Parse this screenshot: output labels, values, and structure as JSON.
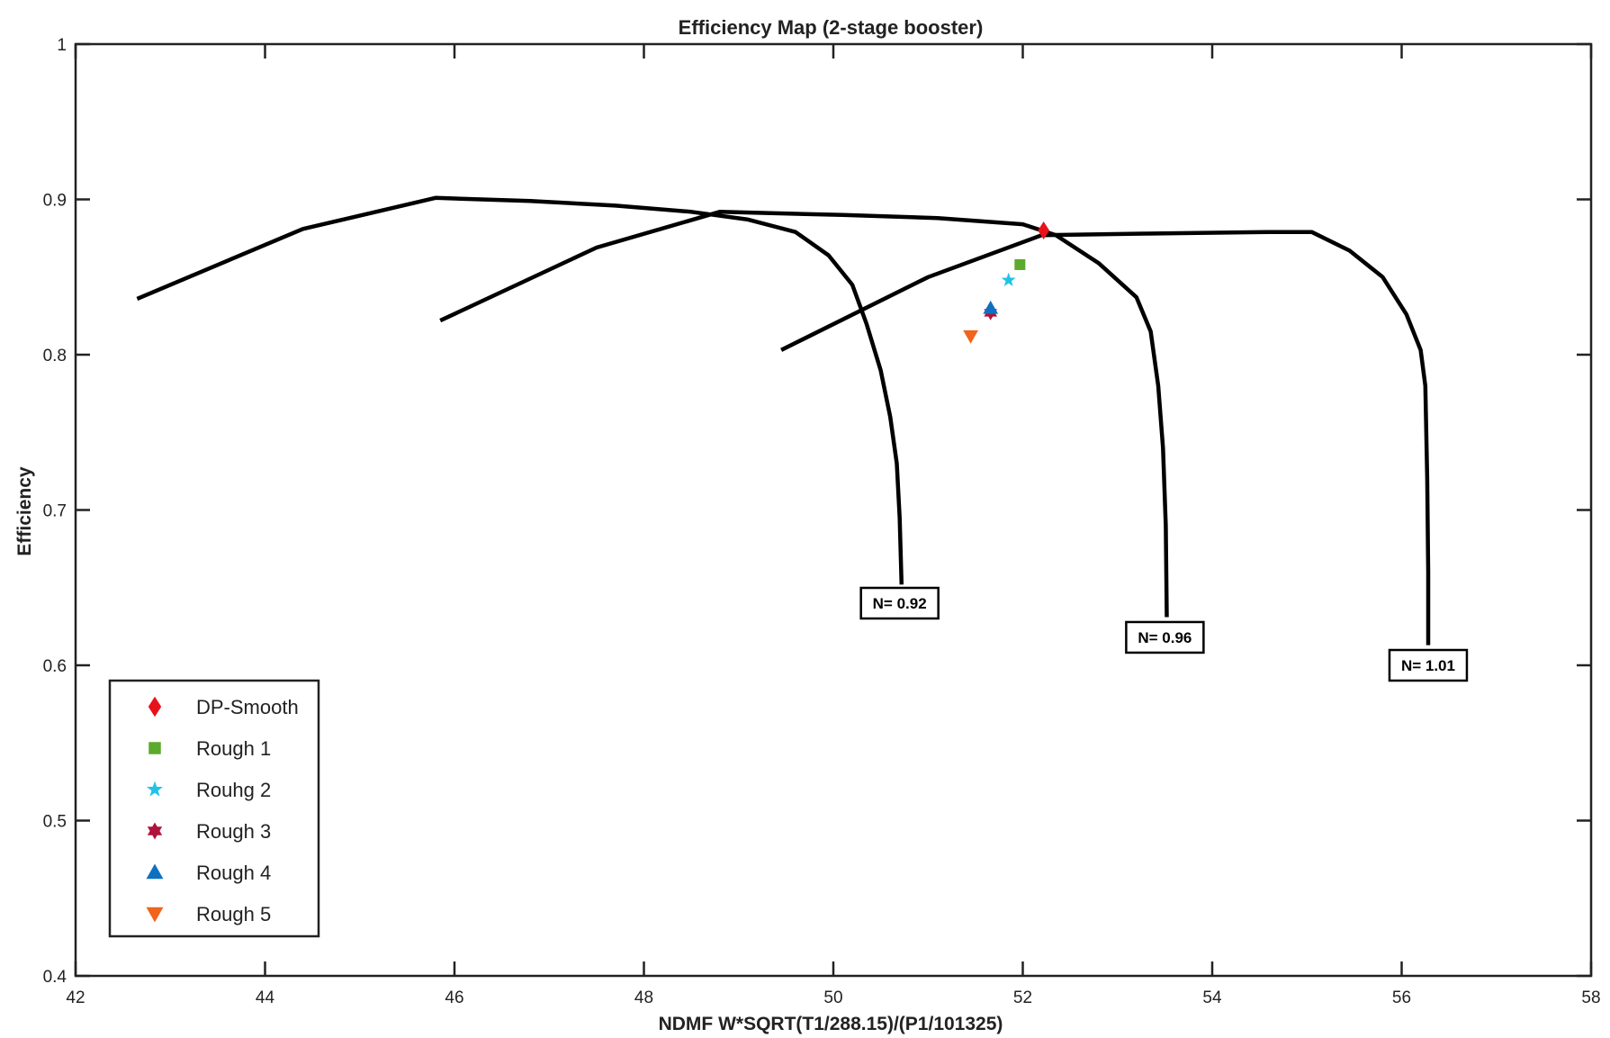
{
  "chart_data": {
    "type": "line",
    "title": "Efficiency Map (2-stage booster)",
    "xlabel": "NDMF W*SQRT(T1/288.15)/(P1/101325)",
    "ylabel": "Efficiency",
    "xlim": [
      42,
      58
    ],
    "ylim": [
      0.4,
      1
    ],
    "xticks": [
      "42",
      "44",
      "46",
      "48",
      "50",
      "52",
      "54",
      "56",
      "58"
    ],
    "yticks": [
      "0.4",
      "0.5",
      "0.6",
      "0.7",
      "0.8",
      "0.9",
      "1"
    ],
    "grid": false,
    "legend_position": "bottom-left",
    "series": [
      {
        "label": "N= 0.92",
        "color": "#000000",
        "points": [
          [
            42.65,
            0.836
          ],
          [
            44.4,
            0.881
          ],
          [
            45.8,
            0.901
          ],
          [
            46.8,
            0.899
          ],
          [
            47.7,
            0.896
          ],
          [
            48.5,
            0.892
          ],
          [
            49.1,
            0.887
          ],
          [
            49.6,
            0.879
          ],
          [
            49.95,
            0.864
          ],
          [
            50.2,
            0.845
          ],
          [
            50.35,
            0.82
          ],
          [
            50.5,
            0.79
          ],
          [
            50.6,
            0.76
          ],
          [
            50.67,
            0.73
          ],
          [
            50.7,
            0.695
          ],
          [
            50.72,
            0.652
          ]
        ]
      },
      {
        "label": "N= 0.96",
        "color": "#000000",
        "points": [
          [
            45.85,
            0.822
          ],
          [
            47.5,
            0.869
          ],
          [
            48.8,
            0.892
          ],
          [
            50.1,
            0.89
          ],
          [
            51.1,
            0.888
          ],
          [
            52.0,
            0.884
          ],
          [
            52.35,
            0.877
          ],
          [
            52.8,
            0.859
          ],
          [
            53.2,
            0.837
          ],
          [
            53.35,
            0.815
          ],
          [
            53.43,
            0.78
          ],
          [
            53.48,
            0.74
          ],
          [
            53.51,
            0.69
          ],
          [
            53.52,
            0.631
          ]
        ]
      },
      {
        "label": "N= 1.01",
        "color": "#000000",
        "points": [
          [
            49.45,
            0.803
          ],
          [
            51.0,
            0.85
          ],
          [
            52.2,
            0.877
          ],
          [
            53.3,
            0.878
          ],
          [
            54.6,
            0.879
          ],
          [
            55.05,
            0.879
          ],
          [
            55.45,
            0.867
          ],
          [
            55.8,
            0.85
          ],
          [
            56.05,
            0.826
          ],
          [
            56.2,
            0.803
          ],
          [
            56.25,
            0.78
          ],
          [
            56.27,
            0.72
          ],
          [
            56.28,
            0.66
          ],
          [
            56.28,
            0.613
          ]
        ]
      }
    ],
    "markers": [
      {
        "name": "DP-Smooth",
        "shape": "diamond",
        "color": "#e8121a",
        "x": 52.22,
        "y": 0.88
      },
      {
        "name": "Rough 1",
        "shape": "square",
        "color": "#5aaa2c",
        "x": 51.97,
        "y": 0.858
      },
      {
        "name": "Rouhg 2",
        "shape": "star",
        "color": "#20c3e6",
        "x": 51.85,
        "y": 0.848
      },
      {
        "name": "Rough 3",
        "shape": "hexagram",
        "color": "#b0123c",
        "x": 51.66,
        "y": 0.827
      },
      {
        "name": "Rough 4",
        "shape": "triangle-up",
        "color": "#1070c0",
        "x": 51.66,
        "y": 0.83
      },
      {
        "name": "Rough 5",
        "shape": "triangle-down",
        "color": "#f0641e",
        "x": 51.45,
        "y": 0.812
      }
    ],
    "annotations": [
      {
        "text": "N= 0.92",
        "x": 50.7,
        "y": 0.64
      },
      {
        "text": "N= 0.96",
        "x": 53.5,
        "y": 0.618
      },
      {
        "text": "N= 1.01",
        "x": 56.28,
        "y": 0.6
      }
    ]
  }
}
